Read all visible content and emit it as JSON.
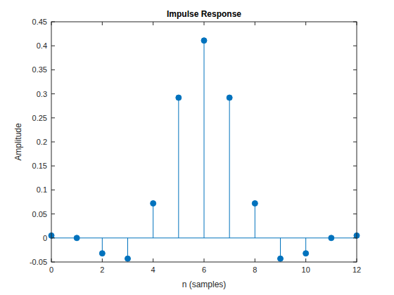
{
  "chart_data": {
    "type": "stem",
    "title": "Impulse Response",
    "x_label": "n (samples)",
    "y_label": "Amplitude",
    "x": [
      0,
      1,
      2,
      3,
      4,
      5,
      6,
      7,
      8,
      9,
      10,
      11,
      12
    ],
    "values": [
      0.005,
      0,
      -0.032,
      -0.043,
      0.072,
      0.292,
      0.411,
      0.292,
      0.072,
      -0.043,
      -0.032,
      0,
      0.005
    ],
    "color": "#0072bd",
    "xlim": [
      0,
      12
    ],
    "xticks": [
      0,
      2,
      4,
      6,
      8,
      10,
      12
    ],
    "ylim": [
      -0.05,
      0.45
    ],
    "yticks": [
      -0.05,
      0,
      0.05,
      0.1,
      0.15,
      0.2,
      0.25,
      0.3,
      0.35,
      0.4,
      0.45
    ],
    "grid": false
  }
}
